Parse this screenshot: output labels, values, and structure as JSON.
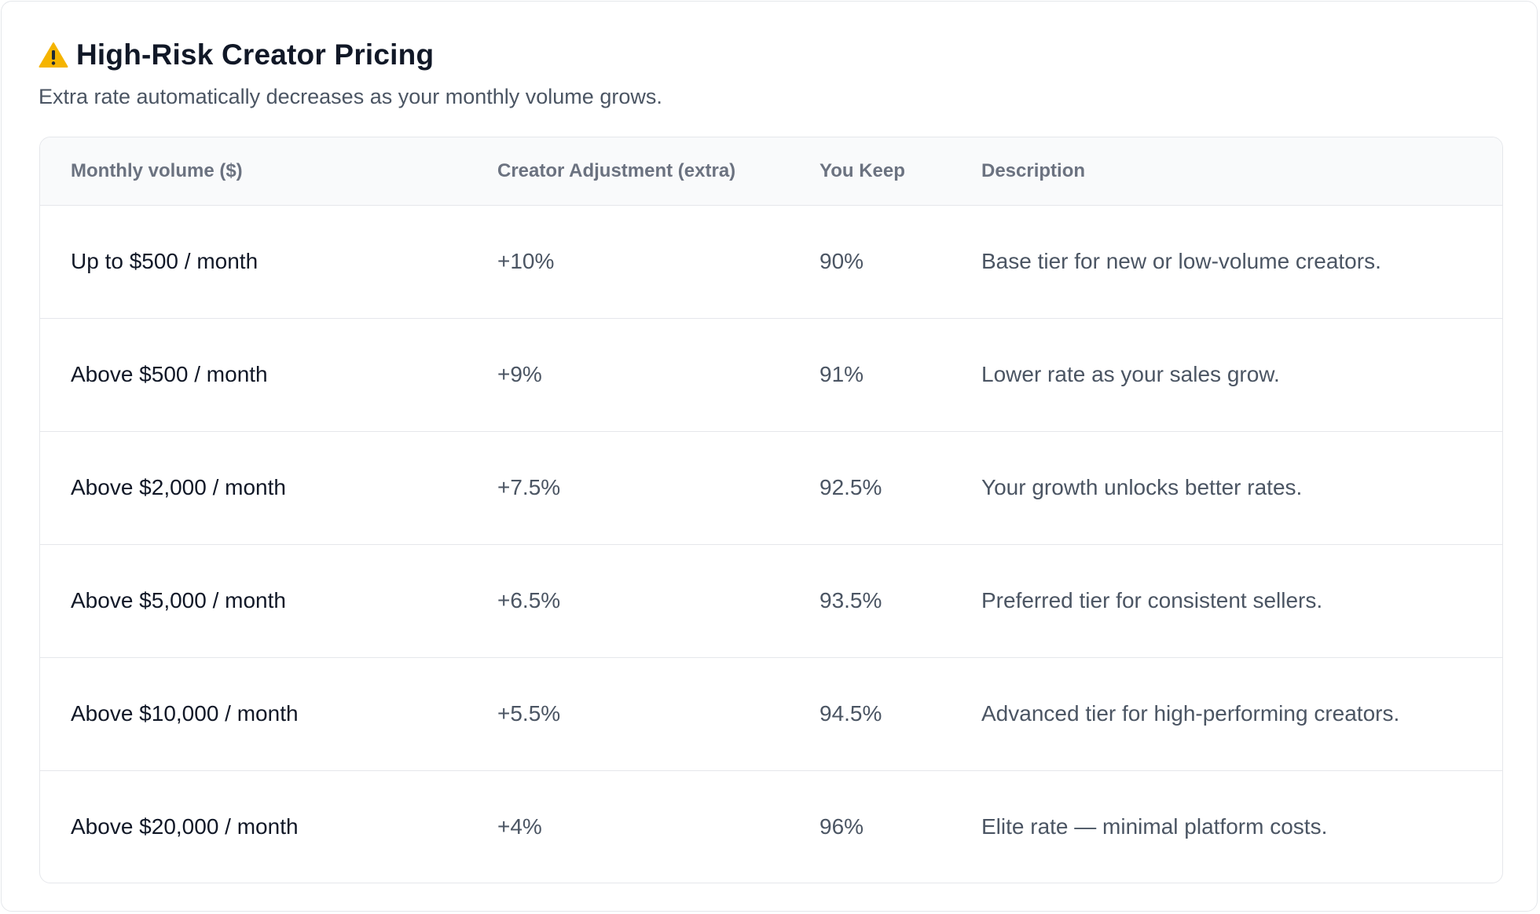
{
  "header": {
    "title": "High-Risk Creator Pricing",
    "subtitle": "Extra rate automatically decreases as your monthly volume grows.",
    "icon": "warning-icon"
  },
  "colors": {
    "warning": "#f5b400",
    "text_primary": "#111827",
    "text_secondary": "#4b5563",
    "header_text": "#6b7280",
    "border": "#e5e7eb",
    "header_bg": "#f9fafb"
  },
  "table": {
    "columns": [
      "Monthly volume ($)",
      "Creator Adjustment (extra)",
      "You Keep",
      "Description"
    ],
    "rows": [
      {
        "volume": "Up to $500 / month",
        "adjustment": "+10%",
        "keep": "90%",
        "description": "Base tier for new or low-volume creators."
      },
      {
        "volume": "Above $500 / month",
        "adjustment": "+9%",
        "keep": "91%",
        "description": "Lower rate as your sales grow."
      },
      {
        "volume": "Above $2,000 / month",
        "adjustment": "+7.5%",
        "keep": "92.5%",
        "description": "Your growth unlocks better rates."
      },
      {
        "volume": "Above $5,000 / month",
        "adjustment": "+6.5%",
        "keep": "93.5%",
        "description": "Preferred tier for consistent sellers."
      },
      {
        "volume": "Above $10,000 / month",
        "adjustment": "+5.5%",
        "keep": "94.5%",
        "description": "Advanced tier for high-performing creators."
      },
      {
        "volume": "Above $20,000 / month",
        "adjustment": "+4%",
        "keep": "96%",
        "description": "Elite rate — minimal platform costs."
      }
    ]
  }
}
